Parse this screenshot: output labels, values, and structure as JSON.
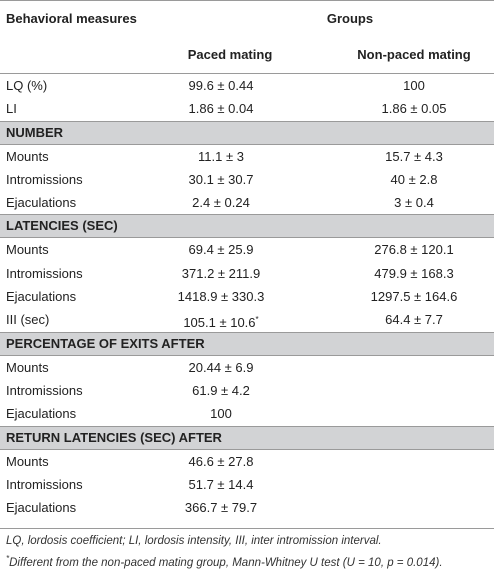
{
  "header": {
    "col0": "Behavioral measures",
    "groups": "Groups",
    "col1": "Paced mating",
    "col2": "Non-paced mating"
  },
  "top_rows": [
    {
      "label": "LQ (%)",
      "paced": "99.6 ± 0.44",
      "nonpaced": "100"
    },
    {
      "label": "LI",
      "paced": "1.86 ± 0.04",
      "nonpaced": "1.86 ± 0.05"
    }
  ],
  "sections": [
    {
      "title": "NUMBER",
      "rows": [
        {
          "label": "Mounts",
          "paced": "11.1 ± 3",
          "nonpaced": "15.7 ± 4.3"
        },
        {
          "label": "Intromissions",
          "paced": "30.1 ± 30.7",
          "nonpaced": "40 ± 2.8"
        },
        {
          "label": "Ejaculations",
          "paced": "2.4 ± 0.24",
          "nonpaced": "3 ± 0.4"
        }
      ]
    },
    {
      "title": "LATENCIES (SEC)",
      "rows": [
        {
          "label": "Mounts",
          "paced": "69.4 ± 25.9",
          "nonpaced": "276.8 ± 120.1"
        },
        {
          "label": "Intromissions",
          "paced": "371.2 ± 211.9",
          "nonpaced": "479.9 ± 168.3"
        },
        {
          "label": "Ejaculations",
          "paced": "1418.9 ± 330.3",
          "nonpaced": "1297.5 ± 164.6"
        },
        {
          "label": "III (sec)",
          "paced": "105.1 ± 10.6",
          "paced_mark": "*",
          "nonpaced": "64.4 ± 7.7"
        }
      ]
    },
    {
      "title": "PERCENTAGE OF EXITS AFTER",
      "rows": [
        {
          "label": "Mounts",
          "paced": "20.44 ± 6.9",
          "nonpaced": ""
        },
        {
          "label": "Intromissions",
          "paced": "61.9 ± 4.2",
          "nonpaced": ""
        },
        {
          "label": "Ejaculations",
          "paced": "100",
          "nonpaced": ""
        }
      ]
    },
    {
      "title": "RETURN LATENCIES (SEC) AFTER",
      "rows": [
        {
          "label": "Mounts",
          "paced": "46.6 ± 27.8",
          "nonpaced": ""
        },
        {
          "label": "Intromissions",
          "paced": "51.7 ± 14.4",
          "nonpaced": ""
        },
        {
          "label": "Ejaculations",
          "paced": "366.7 ± 79.7",
          "nonpaced": ""
        }
      ]
    }
  ],
  "footnotes": {
    "line1": "LQ, lordosis coefficient; LI, lordosis intensity, III, inter intromission interval.",
    "line2_mark": "*",
    "line2": "Different from the non-paced mating group, Mann-Whitney U test (U = 10, p = 0.014)."
  },
  "colors": {
    "section_bg": "#d2d3d5",
    "rule": "#9a9a9a",
    "text": "#222222"
  }
}
